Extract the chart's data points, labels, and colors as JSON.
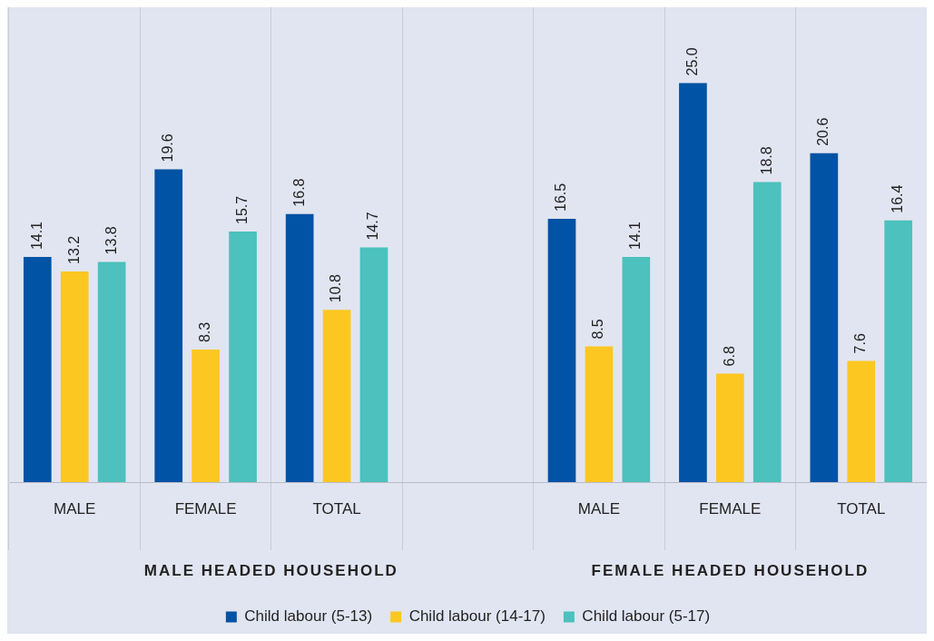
{
  "chart_data": {
    "type": "bar",
    "categories": [
      "MALE",
      "FEMALE",
      "TOTAL",
      null,
      "MALE",
      "FEMALE",
      "TOTAL"
    ],
    "series": [
      {
        "name": "Child labour (5-13)",
        "color": "#0053a5",
        "values": [
          14.1,
          19.6,
          16.8,
          null,
          16.5,
          25.0,
          20.6
        ],
        "value_labels": [
          "14.1",
          "19.6",
          "16.8",
          null,
          "16.5",
          "25.0",
          "20.6"
        ]
      },
      {
        "name": "Child labour (14-17)",
        "color": "#fcc721",
        "values": [
          13.2,
          8.3,
          10.8,
          null,
          8.5,
          6.8,
          7.6
        ],
        "value_labels": [
          "13.2",
          "8.3",
          "10.8",
          null,
          "8.5",
          "6.8",
          "7.6"
        ]
      },
      {
        "name": "Child labour (5-17)",
        "color": "#4cc1bd",
        "values": [
          13.8,
          15.7,
          14.7,
          null,
          14.1,
          18.8,
          16.4
        ],
        "value_labels": [
          "13.8",
          "15.7",
          "14.7",
          null,
          "14.1",
          "18.8",
          "16.4"
        ]
      }
    ],
    "annotations": [
      "MALE HEADED HOUSEHOLD",
      "FEMALE HEADED HOUSEHOLD"
    ],
    "ylim": [
      0,
      29.75
    ],
    "grid": "x",
    "legend": "bottom"
  }
}
